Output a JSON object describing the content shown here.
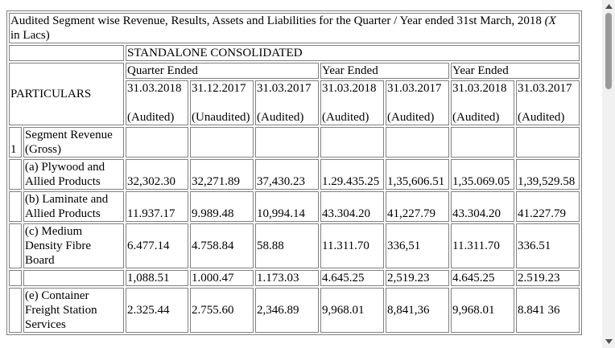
{
  "title_text": "Audited Segment wise Revenue, Results, Assets and Liabilities for the Quarter / Year ended 31st March, 2018 ",
  "title_currency": "(X",
  "title_unit": "in Lacs)",
  "header": {
    "standalone_consolidated": "STANDALONE CONSOLIDATED",
    "particulars": "PARTICULARS",
    "quarter_ended": "Quarter Ended",
    "year_ended_1": "Year Ended",
    "year_ended_2": "Year Ended",
    "dates": [
      "31.03.2018",
      "31.12.2017",
      "31.03.2017",
      "31.03.2018",
      "31.03.2017",
      "31.03.2018",
      "31.03.2017"
    ],
    "audit_status": [
      "(Audited)",
      "(Unaudited)",
      "(Audited)",
      "(Audited)",
      "(Audited)",
      "(Audited)",
      "(Audited)"
    ]
  },
  "rows": [
    {
      "no": "1",
      "particular": "Segment Revenue (Gross)",
      "values": [
        "",
        "",
        "",
        "",
        "",
        "",
        ""
      ]
    },
    {
      "no": "",
      "particular": "(a) Plywood and Allied Products",
      "values": [
        "32,302.30",
        "32,271.89",
        "37,430.23",
        "1.29.435.25",
        "1,35,606.51",
        "1,35.069.05",
        "1,39,529.58"
      ]
    },
    {
      "no": "",
      "particular": "(b) Laminate and Allied Products",
      "values": [
        "11.937.17",
        "9.989.48",
        "10,994.14",
        "43.304.20",
        "41,227.79",
        "43.304.20",
        "41.227.79"
      ]
    },
    {
      "no": "",
      "particular": "(c) Medium Density Fibre Board",
      "values": [
        "6.477.14",
        "4.758.84",
        "58.88",
        "11.311.70",
        "336,51",
        "11.311.70",
        "336.51"
      ]
    },
    {
      "no": "",
      "particular": "",
      "values": [
        "1,088.51",
        "1.000.47",
        "1.173.03",
        "4.645.25",
        "2,519.23",
        "4.645.25",
        "2.519.23"
      ]
    },
    {
      "no": "",
      "particular": "(e) Container Freight Station Services",
      "values": [
        "2.325.44",
        "2.755.60",
        "2,346.89",
        "9,968.01",
        "8,841,36",
        "9,968.01",
        "8.841 36"
      ]
    }
  ]
}
